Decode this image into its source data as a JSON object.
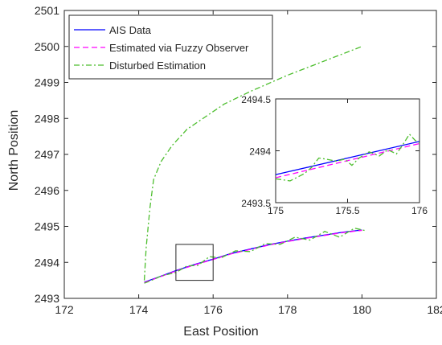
{
  "chart_data": [
    {
      "type": "line",
      "title": "",
      "xlabel": "East Position",
      "ylabel": "North Position",
      "xlim": [
        172,
        182
      ],
      "ylim": [
        2493,
        2501
      ],
      "x_ticks": [
        "172",
        "174",
        "176",
        "178",
        "180",
        "182"
      ],
      "y_ticks": [
        "2493",
        "2494",
        "2495",
        "2496",
        "2497",
        "2498",
        "2499",
        "2500",
        "2501"
      ],
      "grid": false,
      "legend_position": "top-left",
      "series": [
        {
          "name": "AIS Data",
          "color": "#0000ff",
          "style": "solid",
          "x": [
            174.15,
            174.5,
            175.0,
            175.5,
            176.0,
            176.5,
            177.0,
            177.5,
            178.0,
            178.5,
            179.0,
            179.5,
            180.0
          ],
          "y": [
            2493.45,
            2493.58,
            2493.77,
            2493.94,
            2494.09,
            2494.25,
            2494.37,
            2494.49,
            2494.59,
            2494.68,
            2494.76,
            2494.84,
            2494.9
          ]
        },
        {
          "name": "Estimated via Fuzzy Observer",
          "color": "#ff00ff",
          "style": "dashed",
          "x": [
            174.15,
            174.5,
            175.0,
            175.5,
            176.0,
            176.5,
            177.0,
            177.5,
            178.0,
            178.5,
            179.0,
            179.5,
            180.0
          ],
          "y": [
            2493.44,
            2493.57,
            2493.76,
            2493.93,
            2494.08,
            2494.24,
            2494.36,
            2494.48,
            2494.58,
            2494.67,
            2494.75,
            2494.83,
            2494.89
          ]
        },
        {
          "name": "Disturbed Estimation",
          "color": "#4dbe2e",
          "style": "dashdot",
          "x": [
            174.15,
            174.3,
            174.6,
            175.0,
            175.3,
            175.6,
            175.9,
            176.2,
            176.6,
            177.0,
            177.4,
            177.8,
            178.2,
            178.6,
            179.0,
            179.4,
            179.8,
            180.1
          ],
          "y": [
            2493.42,
            2493.48,
            2493.62,
            2493.72,
            2493.9,
            2493.92,
            2494.16,
            2494.12,
            2494.32,
            2494.3,
            2494.52,
            2494.5,
            2494.7,
            2494.62,
            2494.86,
            2494.7,
            2494.95,
            2494.88
          ]
        },
        {
          "name": "",
          "color": "#4dbe2e",
          "style": "dashdot",
          "x": [
            174.15,
            174.2,
            174.3,
            174.4,
            174.6,
            174.9,
            175.3,
            175.8,
            176.3,
            177.0,
            178.0,
            179.0,
            180.0
          ],
          "y": [
            2493.5,
            2494.4,
            2495.5,
            2496.3,
            2496.8,
            2497.25,
            2497.7,
            2498.05,
            2498.4,
            2498.75,
            2499.2,
            2499.6,
            2500.0
          ]
        }
      ],
      "zoom_box": {
        "x": [
          175,
          176
        ],
        "y": [
          2493.5,
          2494.5
        ]
      }
    },
    {
      "type": "line",
      "title": "",
      "xlabel": "",
      "ylabel": "",
      "xlim": [
        175,
        176
      ],
      "ylim": [
        2493.5,
        2494.5
      ],
      "x_ticks": [
        "175",
        "175.5",
        "176"
      ],
      "y_ticks": [
        "2493.5",
        "2494",
        "2494.5"
      ],
      "grid": false,
      "series": [
        {
          "name": "AIS Data",
          "color": "#0000ff",
          "style": "solid",
          "x": [
            175.0,
            176.0
          ],
          "y": [
            2493.77,
            2494.09
          ]
        },
        {
          "name": "Estimated via Fuzzy Observer",
          "color": "#ff00ff",
          "style": "dashed",
          "x": [
            175.0,
            176.0
          ],
          "y": [
            2493.74,
            2494.07
          ]
        },
        {
          "name": "Disturbed Estimation",
          "color": "#4dbe2e",
          "style": "dashdot",
          "x": [
            175.0,
            175.1,
            175.2,
            175.25,
            175.3,
            175.35,
            175.42,
            175.48,
            175.53,
            175.58,
            175.65,
            175.72,
            175.78,
            175.84,
            175.88,
            175.93,
            175.97,
            176.0
          ],
          "y": [
            2493.73,
            2493.71,
            2493.78,
            2493.84,
            2493.93,
            2493.92,
            2493.9,
            2493.92,
            2493.86,
            2493.93,
            2493.99,
            2493.95,
            2494.01,
            2493.97,
            2494.05,
            2494.16,
            2494.1,
            2494.08
          ]
        }
      ]
    }
  ]
}
